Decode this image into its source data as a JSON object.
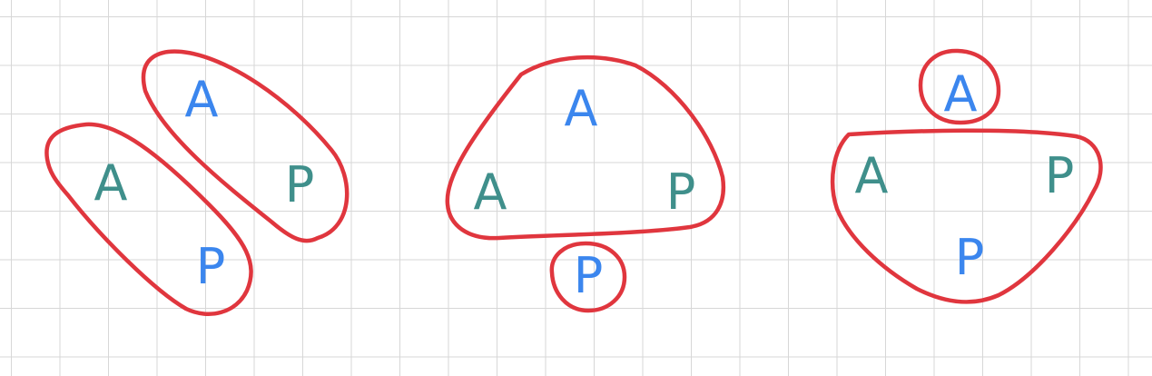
{
  "colors": {
    "loop": "#e0363e",
    "blue": "#3b86ee",
    "teal": "#3f8f8b",
    "grid": "#d7d7d7"
  },
  "diagrams": [
    {
      "letters": [
        {
          "text": "A",
          "color": "blue"
        },
        {
          "text": "A",
          "color": "teal"
        },
        {
          "text": "P",
          "color": "teal"
        },
        {
          "text": "P",
          "color": "blue"
        }
      ]
    },
    {
      "letters": [
        {
          "text": "A",
          "color": "blue"
        },
        {
          "text": "A",
          "color": "teal"
        },
        {
          "text": "P",
          "color": "teal"
        },
        {
          "text": "P",
          "color": "blue"
        }
      ]
    },
    {
      "letters": [
        {
          "text": "A",
          "color": "blue"
        },
        {
          "text": "A",
          "color": "teal"
        },
        {
          "text": "P",
          "color": "teal"
        },
        {
          "text": "P",
          "color": "blue"
        }
      ]
    }
  ]
}
